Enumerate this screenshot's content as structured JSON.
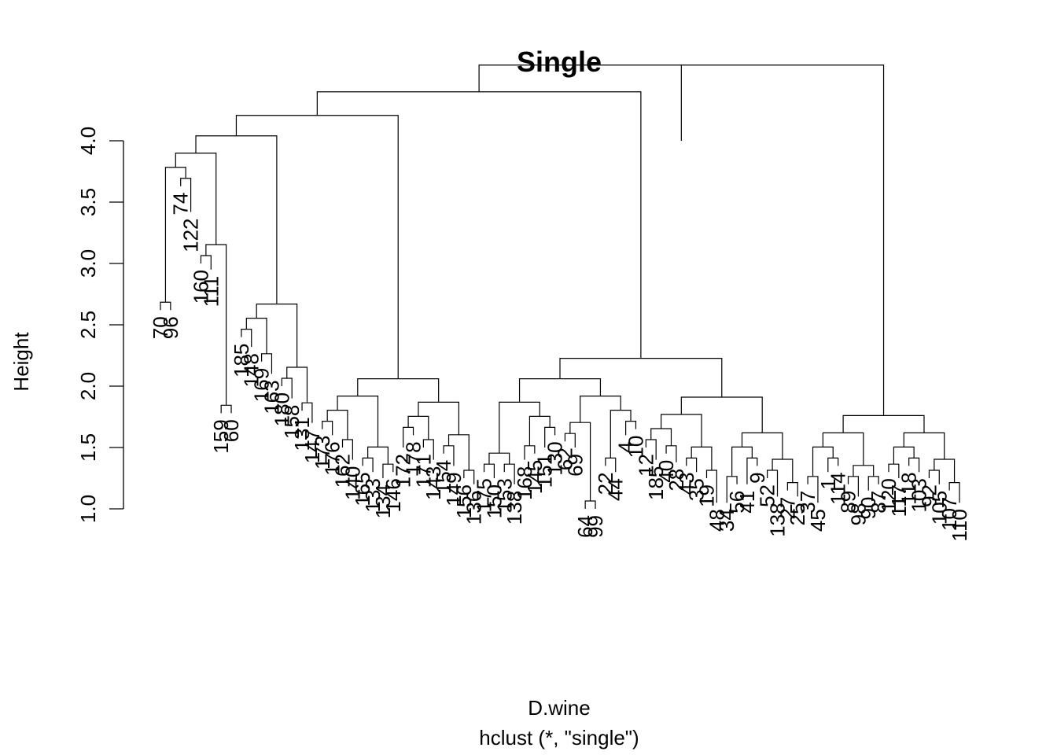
{
  "chart_data": {
    "type": "dendrogram",
    "title": "Single",
    "xlabel": "D.wine",
    "sub": "hclust (*, \"single\")",
    "ylabel": "Height",
    "ylim": [
      1.0,
      4.0
    ],
    "yticks": [
      "1.0",
      "1.5",
      "2.0",
      "2.5",
      "3.0",
      "3.5",
      "4.0"
    ],
    "leaves": [
      {
        "label": "70",
        "h": 2.62
      },
      {
        "label": "96",
        "h": 2.62
      },
      {
        "label": "74",
        "h": 3.63
      },
      {
        "label": "122",
        "h": 3.42
      },
      {
        "label": "160",
        "h": 3.0
      },
      {
        "label": "111",
        "h": 2.95
      },
      {
        "label": "159",
        "h": 1.78
      },
      {
        "label": "60",
        "h": 1.78
      },
      {
        "label": "185",
        "h": 2.4
      },
      {
        "label": "148",
        "h": 2.32
      },
      {
        "label": "169",
        "h": 2.2
      },
      {
        "label": "163",
        "h": 2.1
      },
      {
        "label": "180",
        "h": 2.0
      },
      {
        "label": "158",
        "h": 1.9
      },
      {
        "label": "131",
        "h": 1.8
      },
      {
        "label": "147",
        "h": 1.7
      },
      {
        "label": "173",
        "h": 1.65
      },
      {
        "label": "176",
        "h": 1.6
      },
      {
        "label": "162",
        "h": 1.5
      },
      {
        "label": "140",
        "h": 1.4
      },
      {
        "label": "165",
        "h": 1.35
      },
      {
        "label": "133",
        "h": 1.3
      },
      {
        "label": "134",
        "h": 1.25
      },
      {
        "label": "146",
        "h": 1.3
      },
      {
        "label": "172",
        "h": 1.5
      },
      {
        "label": "178",
        "h": 1.6
      },
      {
        "label": "171",
        "h": 1.5
      },
      {
        "label": "143",
        "h": 1.4
      },
      {
        "label": "154",
        "h": 1.45
      },
      {
        "label": "149",
        "h": 1.35
      },
      {
        "label": "156",
        "h": 1.25
      },
      {
        "label": "136",
        "h": 1.2
      },
      {
        "label": "175",
        "h": 1.3
      },
      {
        "label": "150",
        "h": 1.25
      },
      {
        "label": "153",
        "h": 1.3
      },
      {
        "label": "138",
        "h": 1.2
      },
      {
        "label": "168",
        "h": 1.4
      },
      {
        "label": "145",
        "h": 1.45
      },
      {
        "label": "151",
        "h": 1.5
      },
      {
        "label": "130",
        "h": 1.6
      },
      {
        "label": "62",
        "h": 1.55
      },
      {
        "label": "69",
        "h": 1.5
      },
      {
        "label": "64",
        "h": 1.0
      },
      {
        "label": "99",
        "h": 1.0
      },
      {
        "label": "22",
        "h": 1.35
      },
      {
        "label": "44",
        "h": 1.3
      },
      {
        "label": "4",
        "h": 1.6
      },
      {
        "label": "10",
        "h": 1.65
      },
      {
        "label": "12",
        "h": 1.5
      },
      {
        "label": "185",
        "h": 1.4
      },
      {
        "label": "40",
        "h": 1.45
      },
      {
        "label": "28",
        "h": 1.38
      },
      {
        "label": "43",
        "h": 1.35
      },
      {
        "label": "35",
        "h": 1.3
      },
      {
        "label": "19",
        "h": 1.25
      },
      {
        "label": "48",
        "h": 1.05
      },
      {
        "label": "34",
        "h": 1.05
      },
      {
        "label": "56",
        "h": 1.2
      },
      {
        "label": "41",
        "h": 1.2
      },
      {
        "label": "9",
        "h": 1.35
      },
      {
        "label": "52",
        "h": 1.25
      },
      {
        "label": "138",
        "h": 1.1
      },
      {
        "label": "27",
        "h": 1.15
      },
      {
        "label": "25",
        "h": 1.1
      },
      {
        "label": "37",
        "h": 1.2
      },
      {
        "label": "45",
        "h": 1.05
      },
      {
        "label": "1",
        "h": 1.3
      },
      {
        "label": "114",
        "h": 1.35
      },
      {
        "label": "89",
        "h": 1.2
      },
      {
        "label": "98",
        "h": 1.1
      },
      {
        "label": "90",
        "h": 1.15
      },
      {
        "label": "87",
        "h": 1.2
      },
      {
        "label": "120",
        "h": 1.3
      },
      {
        "label": "117",
        "h": 1.25
      },
      {
        "label": "118",
        "h": 1.35
      },
      {
        "label": "103",
        "h": 1.3
      },
      {
        "label": "92",
        "h": 1.25
      },
      {
        "label": "105",
        "h": 1.2
      },
      {
        "label": "107",
        "h": 1.15
      },
      {
        "label": "110",
        "h": 1.05
      }
    ]
  }
}
